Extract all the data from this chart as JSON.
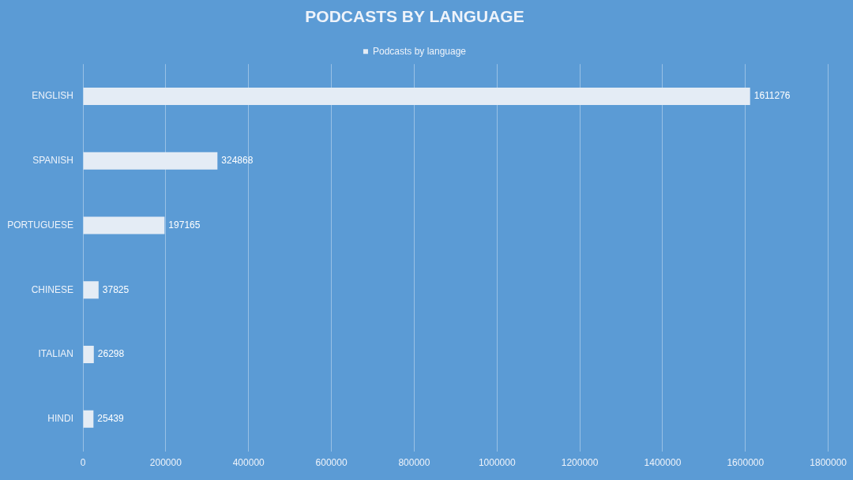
{
  "chart_data": {
    "type": "bar",
    "orientation": "horizontal",
    "title": "PODCASTS BY LANGUAGE",
    "categories": [
      "ENGLISH",
      "SPANISH",
      "PORTUGUESE",
      "CHINESE",
      "ITALIAN",
      "HINDI"
    ],
    "series": [
      {
        "name": "Podcasts by language",
        "color": "#e4ecf5",
        "values": [
          1611276,
          324868,
          197165,
          37825,
          26298,
          25439
        ]
      }
    ],
    "xlim": [
      0,
      1800000
    ],
    "xticks": [
      0,
      200000,
      400000,
      600000,
      800000,
      1000000,
      1200000,
      1400000,
      1600000,
      1800000
    ],
    "grid": "x",
    "legend": "top",
    "data_labels": true
  }
}
